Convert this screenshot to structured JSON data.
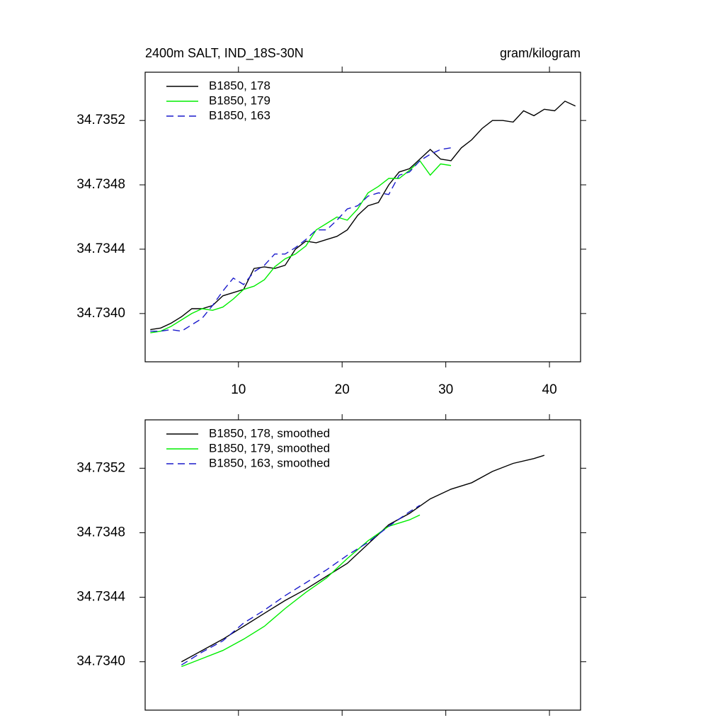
{
  "chart_data": [
    {
      "type": "line",
      "title": "2400m SALT, IND_18S-30N",
      "units": "gram/kilogram",
      "xlim": [
        1,
        43
      ],
      "xticks": [
        10,
        20,
        30,
        40
      ],
      "xtick_labels": true,
      "ylim": [
        34.7337,
        34.7355
      ],
      "yticks": [
        {
          "value": 34.734,
          "label": "34.7340"
        },
        34.7344,
        34.7348,
        34.7352
      ],
      "legend": "top-left",
      "series": [
        {
          "name": "B1850, 178",
          "color": "#000000",
          "dash": false,
          "x": [
            1.5,
            2.5,
            3.5,
            4.5,
            5.5,
            6.5,
            7.5,
            8.5,
            9.5,
            10.5,
            11.5,
            12.5,
            13.5,
            14.5,
            15.5,
            16.5,
            17.5,
            18.5,
            19.5,
            20.5,
            21.5,
            22.5,
            23.5,
            24.5,
            25.5,
            26.5,
            27.5,
            28.5,
            29.5,
            30.5,
            31.5,
            32.5,
            33.5,
            34.5,
            35.5,
            36.5,
            37.5,
            38.5,
            39.5,
            40.5,
            41.5,
            42.5
          ],
          "values": [
            34.7339,
            34.73391,
            34.73394,
            34.73398,
            34.73403,
            34.73403,
            34.73405,
            34.73411,
            34.73413,
            34.73415,
            34.73428,
            34.73429,
            34.73428,
            34.7343,
            34.7344,
            34.73445,
            34.73444,
            34.73446,
            34.73448,
            34.73452,
            34.73461,
            34.73467,
            34.73469,
            34.7348,
            34.73488,
            34.7349,
            34.73496,
            34.73502,
            34.73496,
            34.73495,
            34.73503,
            34.73508,
            34.73515,
            34.7352,
            34.7352,
            34.73519,
            34.73526,
            34.73523,
            34.73527,
            34.73526,
            34.73532,
            34.73529
          ]
        },
        {
          "name": "B1850, 179",
          "color": "#00ee00",
          "dash": false,
          "x": [
            1.5,
            2.5,
            3.5,
            4.5,
            5.5,
            6.5,
            7.5,
            8.5,
            9.5,
            10.5,
            11.5,
            12.5,
            13.5,
            14.5,
            15.5,
            16.5,
            17.5,
            18.5,
            19.5,
            20.5,
            21.5,
            22.5,
            23.5,
            24.5,
            25.5,
            26.5,
            27.5,
            28.5,
            29.5,
            30.5
          ],
          "values": [
            34.73388,
            34.73389,
            34.73392,
            34.73396,
            34.734,
            34.73403,
            34.73402,
            34.73404,
            34.73409,
            34.73415,
            34.73417,
            34.73421,
            34.73429,
            34.73434,
            34.73437,
            34.73442,
            34.73452,
            34.73456,
            34.7346,
            34.73458,
            34.73465,
            34.73475,
            34.73479,
            34.73484,
            34.73484,
            34.73489,
            34.73495,
            34.73486,
            34.73493,
            34.73492
          ]
        },
        {
          "name": "B1850, 163",
          "color": "#1a1acc",
          "dash": true,
          "x": [
            1.5,
            2.5,
            3.5,
            4.5,
            5.5,
            6.5,
            7.5,
            8.5,
            9.5,
            10.5,
            11.5,
            12.5,
            13.5,
            14.5,
            15.5,
            16.5,
            17.5,
            18.5,
            19.5,
            20.5,
            21.5,
            22.5,
            23.5,
            24.5,
            25.5,
            26.5,
            27.5,
            28.5,
            29.5,
            30.5
          ],
          "values": [
            34.73389,
            34.73389,
            34.7339,
            34.73389,
            34.73393,
            34.73397,
            34.73405,
            34.73414,
            34.73422,
            34.73418,
            34.73426,
            34.7343,
            34.73437,
            34.73437,
            34.73441,
            34.73446,
            34.73452,
            34.73452,
            34.73458,
            34.73465,
            34.73467,
            34.73473,
            34.73475,
            34.73474,
            34.73486,
            34.73488,
            34.73495,
            34.73499,
            34.73502,
            34.73503
          ]
        }
      ]
    },
    {
      "type": "line",
      "xlim": [
        1,
        43
      ],
      "xticks": [
        10,
        20,
        30,
        40
      ],
      "xtick_labels": false,
      "ylim": [
        34.7337,
        34.7355
      ],
      "yticks": [
        {
          "value": 34.734,
          "label": "34.7340"
        },
        34.7344,
        34.7348,
        34.7352
      ],
      "legend": "top-left",
      "series": [
        {
          "name": "B1850, 178, smoothed",
          "color": "#000000",
          "dash": false,
          "x": [
            4.5,
            6.5,
            8.5,
            10.5,
            12.5,
            14.5,
            16.5,
            18.5,
            20.5,
            22.5,
            24.5,
            26.5,
            28.5,
            30.5,
            32.5,
            34.5,
            36.5,
            38.5,
            39.5
          ],
          "values": [
            34.734,
            34.73407,
            34.73414,
            34.73422,
            34.7343,
            34.73438,
            34.73445,
            34.73453,
            34.73461,
            34.73473,
            34.73485,
            34.73492,
            34.73501,
            34.73507,
            34.73511,
            34.73518,
            34.73523,
            34.73526,
            34.73528
          ]
        },
        {
          "name": "B1850, 179, smoothed",
          "color": "#00ee00",
          "dash": false,
          "x": [
            4.5,
            6.5,
            8.5,
            10.5,
            12.5,
            14.5,
            16.5,
            18.5,
            20.5,
            22.5,
            24.5,
            26.5,
            27.5
          ],
          "values": [
            34.73397,
            34.73402,
            34.73407,
            34.73414,
            34.73422,
            34.73433,
            34.73443,
            34.73452,
            34.73464,
            34.73475,
            34.73484,
            34.73488,
            34.73491
          ]
        },
        {
          "name": "B1850, 163, smoothed",
          "color": "#1a1acc",
          "dash": true,
          "x": [
            4.5,
            6.5,
            8.5,
            10.5,
            12.5,
            14.5,
            16.5,
            18.5,
            20.5,
            22.5,
            24.5,
            26.5,
            27.5
          ],
          "values": [
            34.73398,
            34.73406,
            34.73413,
            34.73424,
            34.73432,
            34.73441,
            34.73449,
            34.73457,
            34.73466,
            34.73474,
            34.73484,
            34.73493,
            34.73497
          ]
        }
      ]
    }
  ]
}
